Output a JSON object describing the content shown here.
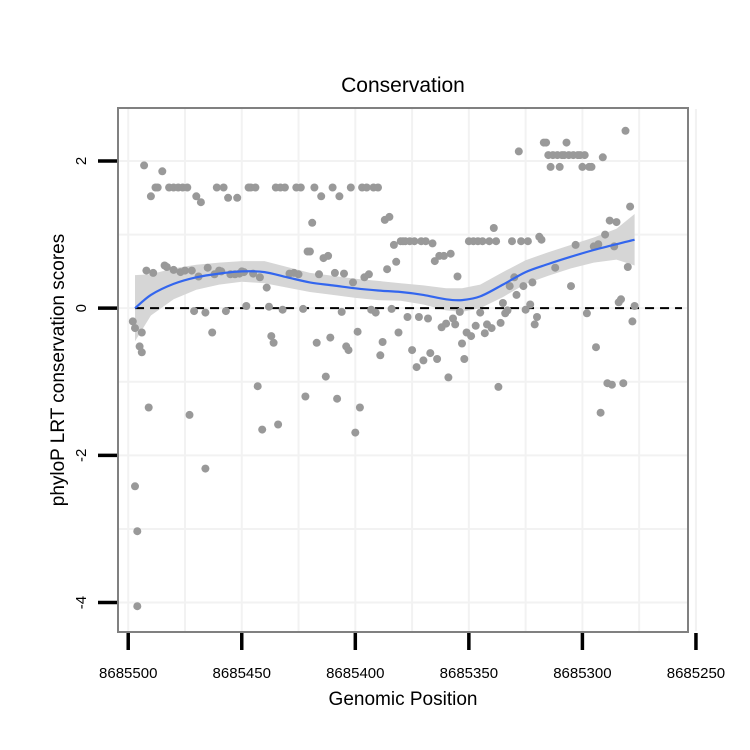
{
  "chart_data": {
    "type": "scatter",
    "title": "Conservation",
    "xlabel": "Genomic Position",
    "ylabel": "phyloP LRT conservation scores",
    "x_reversed": true,
    "xlim": [
      8685504.5,
      8685253.5
    ],
    "ylim": [
      -4.4,
      2.72
    ],
    "xticks": [
      8685500,
      8685450,
      8685400,
      8685350,
      8685300,
      8685250
    ],
    "xtick_labels": [
      "8685500",
      "8685450",
      "8685400",
      "8685350",
      "8685300",
      "8685250"
    ],
    "yticks": [
      -4,
      -2,
      0,
      2
    ],
    "ytick_labels": [
      "-4",
      "-2",
      "0",
      "2"
    ],
    "reference_line": {
      "y": 0,
      "style": "dashed"
    },
    "grid": true,
    "point_color": "#999999",
    "smooth_color": "#3366ee",
    "ribbon_color": "#d6d6d6",
    "series": [
      {
        "name": "phyloP",
        "points": [
          [
            8685497,
            -2.42
          ],
          [
            8685496,
            -3.03
          ],
          [
            8685496,
            -4.05
          ],
          [
            8685498,
            -0.18
          ],
          [
            8685497,
            -0.27
          ],
          [
            8685495,
            -0.52
          ],
          [
            8685494,
            -0.6
          ],
          [
            8685494,
            -0.33
          ],
          [
            8685493,
            1.94
          ],
          [
            8685492,
            0.51
          ],
          [
            8685491,
            -1.35
          ],
          [
            8685490,
            1.52
          ],
          [
            8685489,
            0.48
          ],
          [
            8685488,
            1.64
          ],
          [
            8685487,
            1.64
          ],
          [
            8685485,
            1.86
          ],
          [
            8685484,
            0.58
          ],
          [
            8685483,
            0.56
          ],
          [
            8685482,
            1.64
          ],
          [
            8685480,
            0.52
          ],
          [
            8685480,
            1.64
          ],
          [
            8685478,
            1.64
          ],
          [
            8685477,
            0.49
          ],
          [
            8685476,
            1.64
          ],
          [
            8685475,
            0.51
          ],
          [
            8685474,
            1.64
          ],
          [
            8685473,
            -1.45
          ],
          [
            8685472,
            0.51
          ],
          [
            8685471,
            -0.04
          ],
          [
            8685470,
            1.52
          ],
          [
            8685469,
            0.43
          ],
          [
            8685468,
            1.44
          ],
          [
            8685466,
            -2.18
          ],
          [
            8685466,
            -0.06
          ],
          [
            8685465,
            0.55
          ],
          [
            8685463,
            -0.33
          ],
          [
            8685462,
            0.46
          ],
          [
            8685461,
            1.64
          ],
          [
            8685460,
            0.51
          ],
          [
            8685459,
            0.5
          ],
          [
            8685458,
            1.64
          ],
          [
            8685457,
            -0.04
          ],
          [
            8685456,
            1.5
          ],
          [
            8685455,
            0.46
          ],
          [
            8685453,
            0.46
          ],
          [
            8685452,
            1.5
          ],
          [
            8685451,
            0.47
          ],
          [
            8685450,
            0.5
          ],
          [
            8685449,
            0.49
          ],
          [
            8685448,
            0.03
          ],
          [
            8685447,
            1.64
          ],
          [
            8685446,
            1.64
          ],
          [
            8685445,
            0.47
          ],
          [
            8685444,
            1.64
          ],
          [
            8685443,
            -1.06
          ],
          [
            8685442,
            0.42
          ],
          [
            8685441,
            -1.65
          ],
          [
            8685439,
            0.28
          ],
          [
            8685438,
            0.02
          ],
          [
            8685437,
            -0.38
          ],
          [
            8685436,
            -0.47
          ],
          [
            8685435,
            1.64
          ],
          [
            8685434,
            -1.58
          ],
          [
            8685433,
            1.64
          ],
          [
            8685432,
            -0.02
          ],
          [
            8685431,
            1.64
          ],
          [
            8685429,
            0.47
          ],
          [
            8685427,
            0.48
          ],
          [
            8685426,
            1.64
          ],
          [
            8685425,
            0.46
          ],
          [
            8685424,
            1.64
          ],
          [
            8685423,
            -0.01
          ],
          [
            8685422,
            -1.2
          ],
          [
            8685421,
            0.77
          ],
          [
            8685420,
            0.77
          ],
          [
            8685419,
            1.16
          ],
          [
            8685418,
            1.64
          ],
          [
            8685417,
            -0.47
          ],
          [
            8685416,
            0.46
          ],
          [
            8685415,
            1.52
          ],
          [
            8685414,
            0.68
          ],
          [
            8685413,
            -0.93
          ],
          [
            8685412,
            0.71
          ],
          [
            8685411,
            -0.4
          ],
          [
            8685410,
            1.64
          ],
          [
            8685409,
            0.48
          ],
          [
            8685408,
            -1.23
          ],
          [
            8685407,
            1.52
          ],
          [
            8685406,
            -0.05
          ],
          [
            8685405,
            0.47
          ],
          [
            8685404,
            -0.52
          ],
          [
            8685403,
            -0.57
          ],
          [
            8685402,
            1.64
          ],
          [
            8685401,
            0.35
          ],
          [
            8685400,
            -1.69
          ],
          [
            8685399,
            -0.32
          ],
          [
            8685398,
            -1.35
          ],
          [
            8685397,
            1.64
          ],
          [
            8685396,
            0.42
          ],
          [
            8685395,
            1.64
          ],
          [
            8685394,
            0.46
          ],
          [
            8685393,
            -0.02
          ],
          [
            8685392,
            1.64
          ],
          [
            8685391,
            -0.06
          ],
          [
            8685390,
            1.64
          ],
          [
            8685389,
            -0.64
          ],
          [
            8685388,
            -0.46
          ],
          [
            8685387,
            1.2
          ],
          [
            8685386,
            0.53
          ],
          [
            8685385,
            1.24
          ],
          [
            8685384,
            -0.01
          ],
          [
            8685383,
            0.86
          ],
          [
            8685382,
            0.63
          ],
          [
            8685381,
            -0.33
          ],
          [
            8685380,
            0.91
          ],
          [
            8685379,
            0.91
          ],
          [
            8685378,
            0.91
          ],
          [
            8685377,
            -0.12
          ],
          [
            8685376,
            0.91
          ],
          [
            8685375,
            -0.57
          ],
          [
            8685374,
            0.91
          ],
          [
            8685373,
            -0.8
          ],
          [
            8685372,
            -0.12
          ],
          [
            8685371,
            0.91
          ],
          [
            8685370,
            -0.71
          ],
          [
            8685369,
            0.91
          ],
          [
            8685368,
            -0.14
          ],
          [
            8685367,
            -0.61
          ],
          [
            8685366,
            0.88
          ],
          [
            8685365,
            0.64
          ],
          [
            8685364,
            -0.69
          ],
          [
            8685363,
            0.71
          ],
          [
            8685362,
            -0.26
          ],
          [
            8685361,
            0.71
          ],
          [
            8685360,
            -0.21
          ],
          [
            8685359,
            -0.94
          ],
          [
            8685358,
            0.74
          ],
          [
            8685357,
            -0.14
          ],
          [
            8685356,
            -0.22
          ],
          [
            8685355,
            0.43
          ],
          [
            8685354,
            -0.05
          ],
          [
            8685353,
            -0.48
          ],
          [
            8685352,
            -0.69
          ],
          [
            8685351,
            -0.33
          ],
          [
            8685350,
            0.91
          ],
          [
            8685349,
            -0.38
          ],
          [
            8685348,
            0.91
          ],
          [
            8685347,
            -0.24
          ],
          [
            8685346,
            0.91
          ],
          [
            8685345,
            -0.06
          ],
          [
            8685344,
            0.91
          ],
          [
            8685343,
            -0.34
          ],
          [
            8685342,
            -0.22
          ],
          [
            8685341,
            0.91
          ],
          [
            8685340,
            -0.27
          ],
          [
            8685339,
            1.09
          ],
          [
            8685338,
            0.91
          ],
          [
            8685337,
            -1.07
          ],
          [
            8685336,
            -0.2
          ],
          [
            8685335,
            0.07
          ],
          [
            8685334,
            -0.07
          ],
          [
            8685333,
            -0.03
          ],
          [
            8685332,
            0.3
          ],
          [
            8685331,
            0.91
          ],
          [
            8685330,
            0.42
          ],
          [
            8685329,
            0.18
          ],
          [
            8685328,
            2.13
          ],
          [
            8685327,
            0.91
          ],
          [
            8685326,
            0.3
          ],
          [
            8685325,
            -0.02
          ],
          [
            8685324,
            0.91
          ],
          [
            8685323,
            0.05
          ],
          [
            8685322,
            0.35
          ],
          [
            8685321,
            -0.22
          ],
          [
            8685320,
            -0.12
          ],
          [
            8685319,
            0.97
          ],
          [
            8685318,
            0.93
          ],
          [
            8685317,
            2.25
          ],
          [
            8685316,
            2.25
          ],
          [
            8685315,
            2.08
          ],
          [
            8685314,
            1.92
          ],
          [
            8685313,
            2.08
          ],
          [
            8685312,
            0.55
          ],
          [
            8685311,
            2.08
          ],
          [
            8685310,
            1.92
          ],
          [
            8685309,
            2.08
          ],
          [
            8685308,
            2.08
          ],
          [
            8685307,
            2.25
          ],
          [
            8685306,
            2.08
          ],
          [
            8685305,
            0.3
          ],
          [
            8685304,
            2.08
          ],
          [
            8685303,
            0.86
          ],
          [
            8685302,
            2.08
          ],
          [
            8685301,
            2.08
          ],
          [
            8685300,
            1.92
          ],
          [
            8685299,
            2.08
          ],
          [
            8685298,
            -0.07
          ],
          [
            8685297,
            1.92
          ],
          [
            8685296,
            1.92
          ],
          [
            8685295,
            0.84
          ],
          [
            8685294,
            -0.53
          ],
          [
            8685293,
            0.87
          ],
          [
            8685292,
            -1.42
          ],
          [
            8685291,
            2.05
          ],
          [
            8685290,
            1.0
          ],
          [
            8685289,
            -1.02
          ],
          [
            8685288,
            1.19
          ],
          [
            8685287,
            -1.04
          ],
          [
            8685286,
            0.84
          ],
          [
            8685285,
            1.17
          ],
          [
            8685284,
            0.08
          ],
          [
            8685283,
            0.12
          ],
          [
            8685282,
            -1.02
          ],
          [
            8685281,
            2.41
          ],
          [
            8685280,
            0.56
          ],
          [
            8685279,
            1.38
          ],
          [
            8685278,
            -0.18
          ],
          [
            8685277,
            0.03
          ]
        ]
      }
    ],
    "smooth": {
      "x": [
        8685497,
        8685490,
        8685480,
        8685470,
        8685460,
        8685450,
        8685440,
        8685430,
        8685420,
        8685410,
        8685400,
        8685390,
        8685380,
        8685370,
        8685360,
        8685353,
        8685345,
        8685335,
        8685325,
        8685315,
        8685305,
        8685295,
        8685285,
        8685277
      ],
      "y": [
        0.0,
        0.18,
        0.33,
        0.42,
        0.47,
        0.5,
        0.49,
        0.42,
        0.35,
        0.31,
        0.27,
        0.24,
        0.22,
        0.18,
        0.12,
        0.11,
        0.16,
        0.32,
        0.49,
        0.6,
        0.7,
        0.79,
        0.87,
        0.93
      ],
      "lower": [
        -0.45,
        -0.1,
        0.12,
        0.25,
        0.32,
        0.36,
        0.34,
        0.28,
        0.22,
        0.18,
        0.14,
        0.11,
        0.1,
        0.05,
        -0.03,
        -0.05,
        0.0,
        0.15,
        0.33,
        0.44,
        0.54,
        0.62,
        0.66,
        0.58
      ],
      "upper": [
        0.45,
        0.46,
        0.54,
        0.59,
        0.62,
        0.64,
        0.64,
        0.56,
        0.48,
        0.44,
        0.4,
        0.37,
        0.34,
        0.31,
        0.27,
        0.27,
        0.32,
        0.49,
        0.65,
        0.76,
        0.86,
        0.96,
        1.08,
        1.28
      ]
    }
  }
}
